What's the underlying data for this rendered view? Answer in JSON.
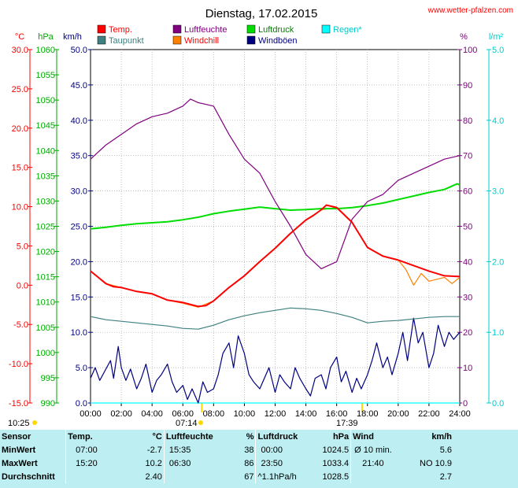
{
  "header": {
    "title": "Dienstag, 17.02.2015",
    "site": "www.wetter-pfalzen.com"
  },
  "legend": [
    {
      "label": "Temp.",
      "color": "#ff0000"
    },
    {
      "label": "Luftfeuchte",
      "color": "#800080"
    },
    {
      "label": "Luftdruck",
      "color": "#00dd00"
    },
    {
      "label": "Regen*",
      "color": "#00ffff"
    },
    {
      "label": "Taupunkt",
      "color": "#408080"
    },
    {
      "label": "Windchill",
      "color": "#ff8000"
    },
    {
      "label": "Windböen",
      "color": "#000080"
    }
  ],
  "units": {
    "temp": "°C",
    "pressure": "hPa",
    "wind": "km/h",
    "humidity": "%",
    "rain": "l/m²"
  },
  "sun": {
    "sunrise_time": "07:14",
    "sunset_time": "17:39",
    "day_length": "10:25"
  },
  "chart_data": {
    "type": "line",
    "x_labels": [
      "00:00",
      "02:00",
      "04:00",
      "06:00",
      "08:00",
      "10:00",
      "12:00",
      "14:00",
      "16:00",
      "18:00",
      "20:00",
      "22:00",
      "24:00"
    ],
    "axes": {
      "temp": {
        "range": [
          -15,
          30
        ],
        "ticks": [
          "-15.0",
          "-10.0",
          "-5.0",
          "0.0",
          "5.0",
          "10.0",
          "15.0",
          "20.0",
          "25.0",
          "30.0"
        ]
      },
      "pressure": {
        "range": [
          990,
          1060
        ],
        "ticks": [
          "990",
          "995",
          "1000",
          "1005",
          "1010",
          "1015",
          "1020",
          "1025",
          "1030",
          "1035",
          "1040",
          "1045",
          "1050",
          "1055",
          "1060"
        ]
      },
      "wind": {
        "range": [
          0,
          50
        ],
        "ticks": [
          "0.0",
          "5.0",
          "10.0",
          "15.0",
          "20.0",
          "25.0",
          "30.0",
          "35.0",
          "40.0",
          "45.0",
          "50.0"
        ]
      },
      "humidity": {
        "range": [
          0,
          100
        ],
        "ticks": [
          "0",
          "10",
          "20",
          "30",
          "40",
          "50",
          "60",
          "70",
          "80",
          "90",
          "100"
        ]
      },
      "rain": {
        "range": [
          0,
          5
        ],
        "ticks": [
          "0.0",
          "1.0",
          "2.0",
          "3.0",
          "4.0",
          "5.0"
        ]
      }
    },
    "series": [
      {
        "name": "Temp.",
        "axis": "temp",
        "color": "#ff0000",
        "x": [
          0,
          0.5,
          1,
          1.5,
          2,
          3,
          4,
          5,
          6,
          7,
          7.5,
          8,
          9,
          10,
          11,
          12,
          13,
          14,
          14.5,
          15,
          15.33,
          16,
          17,
          18,
          19,
          20,
          21,
          22,
          23,
          24
        ],
        "y": [
          1.8,
          1.0,
          0.2,
          -0.2,
          -0.3,
          -0.8,
          -1.1,
          -1.9,
          -2.2,
          -2.7,
          -2.6,
          -2.0,
          -0.3,
          1.2,
          3.0,
          4.7,
          6.6,
          8.3,
          8.9,
          9.6,
          10.2,
          9.9,
          8.0,
          4.8,
          3.7,
          3.2,
          2.5,
          1.8,
          1.2,
          1.1
        ]
      },
      {
        "name": "Luftfeuchte",
        "axis": "humidity",
        "color": "#800080",
        "x": [
          0,
          1,
          2,
          3,
          4,
          5,
          6,
          6.5,
          7,
          8,
          9,
          10,
          11,
          12,
          13,
          14,
          15,
          16,
          17,
          18,
          19,
          20,
          21,
          22,
          23,
          24
        ],
        "y": [
          69,
          73,
          76,
          79,
          81,
          82,
          84,
          86,
          85,
          84,
          76,
          69,
          65,
          57,
          50,
          42,
          38,
          40,
          52,
          57,
          59,
          63,
          65,
          67,
          69,
          70
        ]
      },
      {
        "name": "Luftdruck",
        "axis": "pressure",
        "color": "#00dd00",
        "x": [
          0,
          1,
          2,
          3,
          4,
          5,
          6,
          7,
          8,
          9,
          10,
          11,
          12,
          13,
          14,
          15,
          16,
          17,
          18,
          19,
          20,
          21,
          22,
          23,
          23.83,
          24
        ],
        "y": [
          1024.5,
          1024.8,
          1025.2,
          1025.5,
          1025.7,
          1025.9,
          1026.3,
          1026.8,
          1027.5,
          1028.0,
          1028.4,
          1028.8,
          1028.5,
          1028.2,
          1028.3,
          1028.5,
          1028.5,
          1028.7,
          1029.1,
          1029.6,
          1030.3,
          1031.0,
          1031.7,
          1032.3,
          1033.4,
          1033.2
        ]
      },
      {
        "name": "Taupunkt",
        "axis": "temp",
        "color": "#408080",
        "x": [
          0,
          1,
          2,
          3,
          4,
          5,
          6,
          7,
          8,
          9,
          10,
          11,
          12,
          13,
          14,
          15,
          16,
          17,
          18,
          19,
          20,
          21,
          22,
          23,
          24
        ],
        "y": [
          -4.0,
          -4.4,
          -4.6,
          -4.8,
          -5.0,
          -5.2,
          -5.5,
          -5.6,
          -5.1,
          -4.4,
          -3.9,
          -3.5,
          -3.2,
          -2.9,
          -3.0,
          -3.2,
          -3.6,
          -4.1,
          -4.8,
          -4.6,
          -4.5,
          -4.3,
          -4.1,
          -4.0,
          -4.0
        ]
      },
      {
        "name": "Windchill",
        "axis": "temp",
        "color": "#ff8000",
        "x": [
          0,
          1,
          2,
          3,
          4,
          5,
          6,
          7,
          8,
          9,
          10,
          11,
          12,
          13,
          14,
          15,
          16,
          17,
          18,
          19,
          20,
          20.5,
          21,
          21.5,
          22,
          23,
          23.5,
          24
        ],
        "y": [
          1.8,
          0.2,
          -0.3,
          -0.8,
          -1.1,
          -1.9,
          -2.3,
          -2.8,
          -2.0,
          -0.3,
          1.2,
          3.0,
          4.7,
          6.6,
          8.3,
          9.6,
          9.9,
          8.0,
          4.8,
          3.7,
          3.2,
          2.0,
          0.0,
          1.5,
          0.5,
          1.0,
          0.2,
          1.0
        ]
      },
      {
        "name": "Windböen",
        "axis": "wind",
        "color": "#000080",
        "x": [
          0,
          0.3,
          0.6,
          1,
          1.3,
          1.5,
          1.8,
          2,
          2.3,
          2.6,
          3,
          3.3,
          3.6,
          4,
          4.3,
          4.6,
          5,
          5.3,
          5.6,
          6,
          6.3,
          6.6,
          7,
          7.3,
          7.6,
          8,
          8.3,
          8.6,
          9,
          9.3,
          9.6,
          10,
          10.3,
          10.6,
          11,
          11.3,
          11.6,
          12,
          12.3,
          12.6,
          13,
          13.3,
          13.6,
          14,
          14.3,
          14.6,
          15,
          15.3,
          15.6,
          16,
          16.3,
          16.6,
          17,
          17.3,
          17.6,
          18,
          18.3,
          18.6,
          19,
          19.3,
          19.6,
          20,
          20.3,
          20.6,
          21,
          21.3,
          21.6,
          22,
          22.3,
          22.6,
          23,
          23.3,
          23.6,
          24
        ],
        "y": [
          3.5,
          5.0,
          3.2,
          4.8,
          6.0,
          3.5,
          8.0,
          5.0,
          3.2,
          4.8,
          2.0,
          3.5,
          5.5,
          1.5,
          3.2,
          4.0,
          5.5,
          3.0,
          1.5,
          2.5,
          0.5,
          2.0,
          0.0,
          3.0,
          1.5,
          2.0,
          4.0,
          7.0,
          8.5,
          5.0,
          9.5,
          7.0,
          4.0,
          3.0,
          2.0,
          3.5,
          5.0,
          1.5,
          4.0,
          3.0,
          2.0,
          5.0,
          3.5,
          2.0,
          1.0,
          3.5,
          4.0,
          2.0,
          5.0,
          6.5,
          3.0,
          4.5,
          1.5,
          3.5,
          2.0,
          4.0,
          6.0,
          8.5,
          5.0,
          6.5,
          4.0,
          7.0,
          10.0,
          6.0,
          12.0,
          8.5,
          10.0,
          5.0,
          7.0,
          11.0,
          8.0,
          10.0,
          9.0,
          10.0
        ]
      },
      {
        "name": "Regen*",
        "axis": "rain",
        "color": "#00ffff",
        "x": [
          0,
          24
        ],
        "y": [
          0,
          0
        ]
      }
    ]
  },
  "stats": {
    "headers": {
      "sensor": "Sensor",
      "temp": "Temp.",
      "temp_unit": "°C",
      "hum": "Luftfeuchte",
      "hum_unit": "%",
      "press": "Luftdruck",
      "press_unit": "hPa",
      "wind": "Wind",
      "wind_unit": "km/h"
    },
    "rows": [
      {
        "label": "MinWert",
        "temp_time": "07:00",
        "temp": "-2.7",
        "hum_time": "15:35",
        "hum": "38",
        "press_time": "00:00",
        "press": "1024.5",
        "wind_desc": "Ø 10 min.",
        "wind": "5.6"
      },
      {
        "label": "MaxWert",
        "temp_time": "15:20",
        "temp": "10.2",
        "hum_time": "06:30",
        "hum": "86",
        "press_time": "23:50",
        "press": "1033.4",
        "wind_desc": "21:40",
        "wind": "NO 10.9"
      },
      {
        "label": "Durchschnitt",
        "temp_time": "",
        "temp": "2.40",
        "hum_time": "",
        "hum": "67",
        "press_time": "^1.1hPa/h",
        "press": "1028.5",
        "wind_desc": "",
        "wind": "2.7"
      }
    ]
  }
}
